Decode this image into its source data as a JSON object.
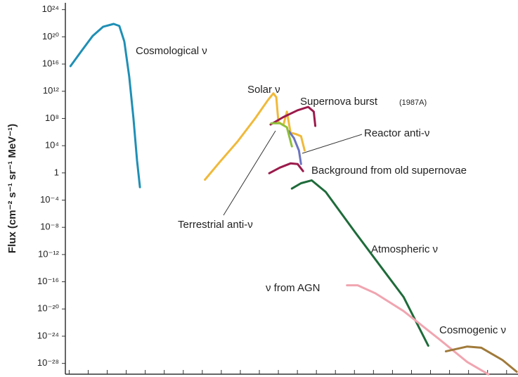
{
  "chart_data": {
    "type": "line",
    "y_label": "Flux (cm⁻² s⁻¹ sr⁻¹ MeV⁻¹)",
    "ylog": true,
    "ylim": [
      1e-30,
      1e+25
    ],
    "yticks": [
      {
        "value": 1e+24,
        "label": "10²⁴"
      },
      {
        "value": 1e+20,
        "label": "10²⁰"
      },
      {
        "value": 1e+16,
        "label": "10¹⁶"
      },
      {
        "value": 1000000000000.0,
        "label": "10¹²"
      },
      {
        "value": 100000000.0,
        "label": "10⁸"
      },
      {
        "value": 10000.0,
        "label": "10⁴"
      },
      1,
      {
        "value": 0.0001,
        "label": "10⁻⁴"
      },
      {
        "value": 1e-08,
        "label": "10⁻⁸"
      },
      {
        "value": 1e-12,
        "label": "10⁻¹²"
      },
      {
        "value": 1e-16,
        "label": "10⁻¹⁶"
      },
      {
        "value": 1e-20,
        "label": "10⁻²⁰"
      },
      {
        "value": 1e-24,
        "label": "10⁻²⁴"
      },
      {
        "value": 1e-28,
        "label": "10⁻²⁸"
      }
    ],
    "xlim": [
      -0.2,
      23.6
    ],
    "xticks": [
      0,
      1,
      2,
      3,
      4,
      5,
      6,
      7,
      8,
      9,
      10,
      11,
      12,
      13,
      14,
      15,
      16,
      17,
      18,
      19,
      20,
      21,
      22,
      23
    ],
    "annotations": [
      "(1987A)"
    ],
    "series": [
      {
        "name": "Cosmological ν",
        "color": "#1f8fb5",
        "x": [
          0.07,
          0.67,
          1.23,
          1.78,
          2.34,
          2.64,
          2.9,
          3.16,
          3.38,
          3.57,
          3.72
        ],
        "values": [
          5000000000000000.0,
          1e+18,
          1.3e+20,
          3e+21,
          8e+21,
          4e+21,
          2e+19,
          130000000000000.0,
          100000000.0,
          63,
          0.008
        ]
      },
      {
        "name": "Solar ν",
        "color": "#f0b93a",
        "x": [
          7.14,
          7.92,
          8.85,
          9.78,
          10.45,
          10.74,
          10.89,
          11.0,
          11.26,
          11.45,
          11.64,
          11.93,
          12.19,
          12.38
        ],
        "values": [
          0.1,
          40,
          40000.0,
          100000000.0,
          50000000000.0,
          500000000000.0,
          130000000000.0,
          30000000.0,
          10000000.0,
          1000000000.0,
          800000.0,
          500000.0,
          250000.0,
          2000.0
        ]
      },
      {
        "name": "Supernova burst",
        "color": "#9b1b4b",
        "x": [
          10.59,
          11.26,
          12.01,
          12.57,
          12.86,
          12.94
        ],
        "values": [
          13000000.0,
          160000000.0,
          1600000000.0,
          5000000000.0,
          1000000000.0,
          8000000.0
        ]
      },
      {
        "name": "Reactor anti-ν",
        "color": "#6b74c0",
        "x": [
          11.56,
          11.82,
          12.08,
          12.19
        ],
        "values": [
          1300000.0,
          130000.0,
          2000.0,
          20
        ]
      },
      {
        "name": "Background from old supernovae",
        "color": "#9b1b4b",
        "x": [
          10.52,
          11.08,
          11.64,
          12.01,
          12.3
        ],
        "values": [
          0.9,
          6,
          25,
          20,
          1.8
        ]
      },
      {
        "name": "Terrestrial anti-ν",
        "color": "#8fbf3a",
        "x": [
          10.63,
          11.08,
          11.45,
          11.71
        ],
        "values": [
          20000000.0,
          20000000.0,
          5000000.0,
          8000.0
        ]
      },
      {
        "name": "Atmospheric ν",
        "color": "#1e6b3a",
        "x": [
          11.71,
          12.19,
          12.75,
          13.49,
          14.98,
          16.47,
          17.58,
          18.88
        ],
        "values": [
          0.005,
          0.03,
          0.08,
          0.0016,
          3e-09,
          8e-15,
          6e-19,
          4e-26
        ]
      },
      {
        "name": "ν from AGN",
        "color": "#f0a5b0",
        "x": [
          14.61,
          15.17,
          16.1,
          17.58,
          19.44,
          20.93,
          22.04
        ],
        "values": [
          3e-17,
          3e-17,
          2e-18,
          5e-21,
          4e-25,
          1.6e-28,
          2.5e-30
        ]
      },
      {
        "name": "Cosmogenic ν",
        "color": "#a07a3a",
        "x": [
          19.81,
          20.93,
          21.67,
          22.79,
          23.53
        ],
        "values": [
          6e-27,
          3e-26,
          2e-26,
          3e-28,
          6e-30
        ]
      }
    ]
  }
}
